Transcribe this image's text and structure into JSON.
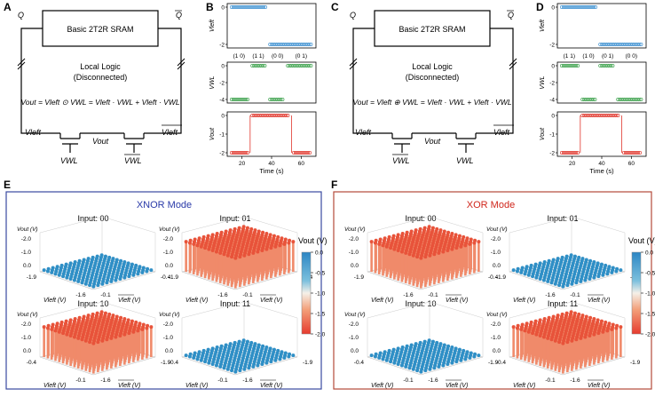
{
  "panels": {
    "A": {
      "letter": "A",
      "q": "Q",
      "q_bar": "Q",
      "sram_label": "Basic 2T2R SRAM",
      "logic_line1": "Local Logic",
      "logic_line2": "(Disconnected)",
      "equation": "Vout = Vleft ⊙ VWL = Vleft · VWL + Vleft · VWL",
      "v_left": "Vleft",
      "v_left_bar": "Vleft",
      "v_out": "Vout",
      "v_wl": "VWL",
      "v_wl_bar": "VWL",
      "color": "#2a3aa8"
    },
    "C": {
      "letter": "C",
      "q": "Q",
      "q_bar": "Q",
      "sram_label": "Basic 2T2R SRAM",
      "logic_line1": "Local Logic",
      "logic_line2": "(Disconnected)",
      "equation": "Vout = Vleft ⊕ VWL = Vleft · VWL + Vleft · VWL",
      "v_left": "Vleft",
      "v_left_bar": "Vleft",
      "v_out": "Vout",
      "v_wl": "VWL",
      "v_wl_bar": "VWL",
      "color": "#d0261b"
    },
    "B": {
      "letter": "B",
      "x_label": "Time (s)",
      "x_ticks": [
        "20",
        "40",
        "60"
      ],
      "plots": [
        {
          "ylabel": "Vleft",
          "ticks": [
            "0",
            "-2"
          ],
          "color": "#3b8fd0",
          "tags": [
            "(1 0)",
            "(1 1)",
            "(0 0)",
            "(0 1)"
          ]
        },
        {
          "ylabel": "VWL",
          "ticks": [
            "0",
            "-2",
            "-4"
          ],
          "color": "#3aa04a",
          "tags": []
        },
        {
          "ylabel": "Vout",
          "ticks": [
            "0",
            "-1",
            "-2"
          ],
          "color": "#e0352b",
          "tags": []
        }
      ]
    },
    "D": {
      "letter": "D",
      "x_label": "Time (s)",
      "x_ticks": [
        "20",
        "40",
        "60"
      ],
      "plots": [
        {
          "ylabel": "Vleft",
          "ticks": [
            "0",
            "-2"
          ],
          "color": "#3b8fd0",
          "tags": [
            "(1 1)",
            "(1 0)",
            "(0 1)",
            "(0 0)"
          ]
        },
        {
          "ylabel": "VWL",
          "ticks": [
            "0",
            "-2",
            "-4"
          ],
          "color": "#3aa04a",
          "tags": []
        },
        {
          "ylabel": "Vout",
          "ticks": [
            "0",
            "-1",
            "-2"
          ],
          "color": "#e0352b",
          "tags": []
        }
      ]
    },
    "E": {
      "letter": "E",
      "mode": "XNOR Mode",
      "mode_color": "#2a3aa8",
      "border": "#3a4aa0",
      "colorbar_title": "Vout (V)",
      "colorbar_ticks": [
        "0.0",
        "-0.5",
        "-1.0",
        "-1.5",
        "-2.0"
      ],
      "cells": [
        {
          "title": "Input: 00",
          "z": "Vout (V)",
          "xlabel": "Vleft (V)",
          "ylabel": "Vleft (V)",
          "zticks": [
            "-2.0",
            "-1.0",
            "0.0"
          ],
          "level": "low",
          "a": "-1.9",
          "b": "-1.6",
          "c": "-0.1",
          "d": "-0.4"
        },
        {
          "title": "Input: 01",
          "z": "Vout (V)",
          "xlabel": "Vleft (V)",
          "ylabel": "Vleft (V)",
          "zticks": [
            "-2.0",
            "-1.0",
            "0.0"
          ],
          "level": "high",
          "a": "-1.9",
          "b": "-1.6",
          "c": "-0.1",
          "d": "-0.4"
        },
        {
          "title": "Input: 10",
          "z": "Vout (V)",
          "xlabel": "Vleft (V)",
          "ylabel": "Vleft (V)",
          "zticks": [
            "-2.0",
            "-1.0",
            "0.0"
          ],
          "level": "high",
          "a": "-0.4",
          "b": "-0.1",
          "c": "-1.6",
          "d": "-1.9"
        },
        {
          "title": "Input: 11",
          "z": "Vout (V)",
          "xlabel": "Vleft (V)",
          "ylabel": "Vleft (V)",
          "zticks": [
            "-2.0",
            "-1.0",
            "0.0"
          ],
          "level": "low",
          "a": "-0.4",
          "b": "-0.1",
          "c": "-1.6",
          "d": "-1.9"
        }
      ]
    },
    "F": {
      "letter": "F",
      "mode": "XOR Mode",
      "mode_color": "#d0261b",
      "border": "#b34a3a",
      "colorbar_title": "Vout (V)",
      "colorbar_ticks": [
        "0.0",
        "-0.5",
        "-1.0",
        "-1.5",
        "-2.0"
      ],
      "cells": [
        {
          "title": "Input: 00",
          "z": "Vout (V)",
          "xlabel": "Vleft (V)",
          "ylabel": "Vleft (V)",
          "zticks": [
            "-2.0",
            "-1.0",
            "0.0"
          ],
          "level": "high",
          "a": "-1.9",
          "b": "-1.6",
          "c": "-0.1",
          "d": "-0.4"
        },
        {
          "title": "Input: 01",
          "z": "Vout (V)",
          "xlabel": "Vleft (V)",
          "ylabel": "Vleft (V)",
          "zticks": [
            "-2.0",
            "-1.0",
            "0.0"
          ],
          "level": "low",
          "a": "-1.9",
          "b": "-1.6",
          "c": "-0.1",
          "d": "-0.4"
        },
        {
          "title": "Input: 10",
          "z": "Vout (V)",
          "xlabel": "Vleft (V)",
          "ylabel": "Vleft (V)",
          "zticks": [
            "-2.0",
            "-1.0",
            "0.0"
          ],
          "level": "low",
          "a": "-0.4",
          "b": "-0.1",
          "c": "-1.6",
          "d": "-1.9"
        },
        {
          "title": "Input: 11",
          "z": "Vout (V)",
          "xlabel": "Vleft (V)",
          "ylabel": "Vleft (V)",
          "zticks": [
            "-2.0",
            "-1.0",
            "0.0"
          ],
          "level": "high",
          "a": "-0.4",
          "b": "-0.1",
          "c": "-1.6",
          "d": "-1.9"
        }
      ]
    }
  }
}
